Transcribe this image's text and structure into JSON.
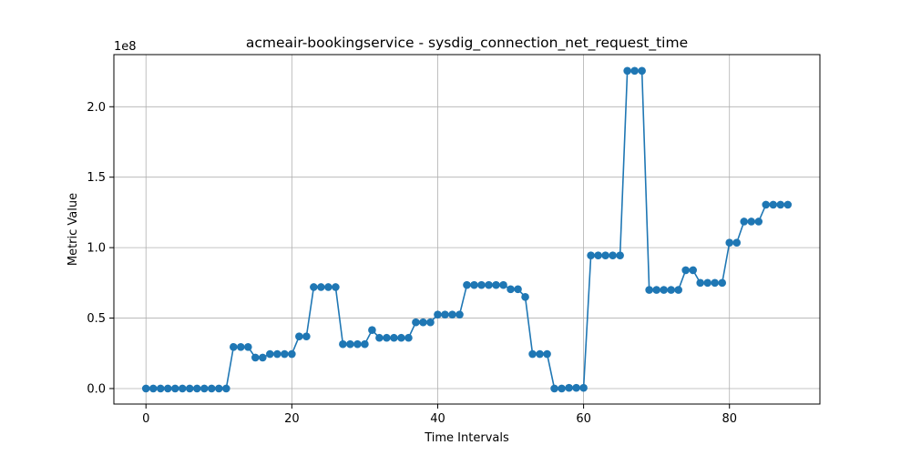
{
  "chart_data": {
    "type": "line",
    "title": "acmeair-bookingservice - sysdig_connection_net_request_time",
    "xlabel": "Time Intervals",
    "ylabel": "Metric Value",
    "y_scale_label": "1e8",
    "xlim": [
      -4.4,
      92.4
    ],
    "ylim": [
      -0.11,
      2.37
    ],
    "x_ticks": [
      0,
      20,
      40,
      60,
      80
    ],
    "y_ticks": [
      0.0,
      0.5,
      1.0,
      1.5,
      2.0
    ],
    "x_tick_labels": [
      "0",
      "20",
      "40",
      "60",
      "80"
    ],
    "y_tick_labels": [
      "0.0",
      "0.5",
      "1.0",
      "1.5",
      "2.0"
    ],
    "grid": true,
    "colors": {
      "series": "#1f77b4",
      "grid": "#b0b0b0",
      "axis": "#000000"
    },
    "series": [
      {
        "marker": "circle",
        "x": [
          0,
          1,
          2,
          3,
          4,
          5,
          6,
          7,
          8,
          9,
          10,
          11,
          12,
          13,
          14,
          15,
          16,
          17,
          18,
          19,
          20,
          21,
          22,
          23,
          24,
          25,
          26,
          27,
          28,
          29,
          30,
          31,
          32,
          33,
          34,
          35,
          36,
          37,
          38,
          39,
          40,
          41,
          42,
          43,
          44,
          45,
          46,
          47,
          48,
          49,
          50,
          51,
          52,
          53,
          54,
          55,
          56,
          57,
          58,
          59,
          60,
          61,
          62,
          63,
          64,
          65,
          66,
          67,
          68,
          69,
          70,
          71,
          72,
          73,
          74,
          75,
          76,
          77,
          78,
          79,
          80,
          81,
          82,
          83,
          84,
          85,
          86,
          87,
          88
        ],
        "values": [
          0,
          0,
          0,
          0,
          0,
          0,
          0,
          0,
          0,
          0,
          0,
          0,
          0.295,
          0.295,
          0.295,
          0.22,
          0.22,
          0.245,
          0.245,
          0.245,
          0.245,
          0.37,
          0.37,
          0.72,
          0.72,
          0.72,
          0.72,
          0.315,
          0.315,
          0.315,
          0.315,
          0.415,
          0.36,
          0.36,
          0.36,
          0.36,
          0.36,
          0.47,
          0.47,
          0.47,
          0.525,
          0.525,
          0.525,
          0.525,
          0.735,
          0.735,
          0.735,
          0.735,
          0.735,
          0.735,
          0.705,
          0.705,
          0.65,
          0.245,
          0.245,
          0.245,
          0,
          0,
          0.005,
          0.005,
          0.005,
          0.945,
          0.945,
          0.945,
          0.945,
          0.945,
          2.255,
          2.255,
          2.255,
          0.7,
          0.7,
          0.7,
          0.7,
          0.7,
          0.84,
          0.84,
          0.75,
          0.75,
          0.75,
          0.75,
          1.035,
          1.035,
          1.185,
          1.185,
          1.185,
          1.305,
          1.305,
          1.305,
          1.305
        ]
      }
    ]
  }
}
